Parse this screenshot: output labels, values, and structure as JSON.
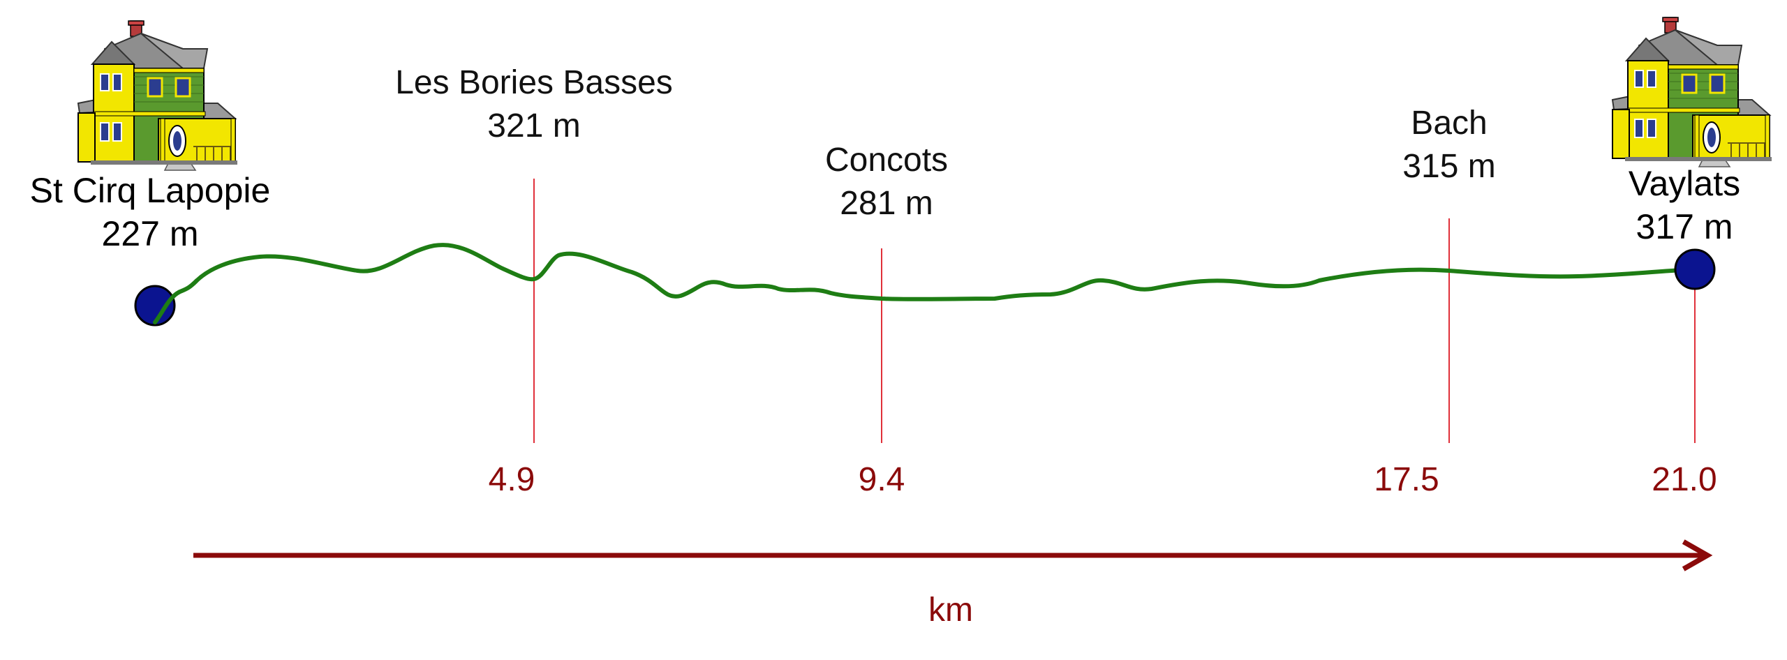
{
  "diagram": {
    "start": {
      "name": "St Cirq Lapopie",
      "altitude": "227 m",
      "km": 0
    },
    "end": {
      "name": "Vaylats",
      "altitude": "317 m",
      "km": 21.0
    },
    "waypoints": [
      {
        "name": "Les Bories Basses",
        "altitude": "321 m",
        "km_label": "4.9",
        "km": 4.9
      },
      {
        "name": "Concots",
        "altitude": "281 m",
        "km_label": "9.4",
        "km": 9.4
      },
      {
        "name": "Bach",
        "altitude": "315 m",
        "km_label": "17.5",
        "km": 17.5
      }
    ],
    "end_km_label": "21.0",
    "axis_unit": "km",
    "colors": {
      "route": "#1e7d14",
      "marker_line": "#e0303a",
      "axis": "#8b0a0a",
      "endpoint_dot": "#0b1490",
      "house_body": "#f2e600",
      "house_siding": "#5a9a2e",
      "roof": "#8e8e8e"
    },
    "icons": {
      "start": "house-icon",
      "end": "house-icon"
    }
  }
}
